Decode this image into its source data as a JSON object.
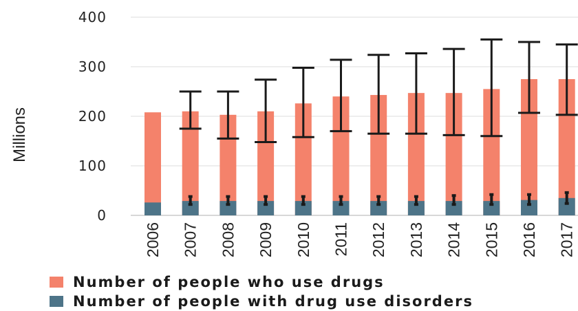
{
  "chart_data": {
    "type": "bar",
    "stacked": false,
    "title": "",
    "xlabel": "",
    "ylabel": "Millions",
    "ylim": [
      0,
      400
    ],
    "yticks": [
      0,
      100,
      200,
      300,
      400
    ],
    "grid": "horizontal",
    "legend_position": "bottom",
    "categories": [
      "2006",
      "2007",
      "2008",
      "2009",
      "2010",
      "2011",
      "2012",
      "2013",
      "2014",
      "2015",
      "2016",
      "2017"
    ],
    "series": [
      {
        "name": "Number of people who use drugs",
        "color": "#f4826b",
        "values": [
          208,
          210,
          203,
          210,
          226,
          240,
          243,
          247,
          247,
          255,
          275,
          275
        ],
        "error_low": [
          null,
          175,
          155,
          148,
          158,
          170,
          165,
          165,
          162,
          160,
          207,
          203
        ],
        "error_high": [
          null,
          250,
          250,
          274,
          298,
          314,
          324,
          327,
          336,
          355,
          350,
          345
        ]
      },
      {
        "name": "Number of people with drug use disorders",
        "color": "#4d7488",
        "values": [
          26,
          29,
          29,
          29,
          29,
          29,
          29,
          29,
          29,
          29,
          31,
          35
        ],
        "error_low": [
          null,
          22,
          22,
          22,
          22,
          22,
          22,
          22,
          22,
          22,
          22,
          24
        ],
        "error_high": [
          null,
          38,
          38,
          38,
          38,
          38,
          38,
          38,
          40,
          42,
          42,
          46
        ]
      }
    ]
  }
}
